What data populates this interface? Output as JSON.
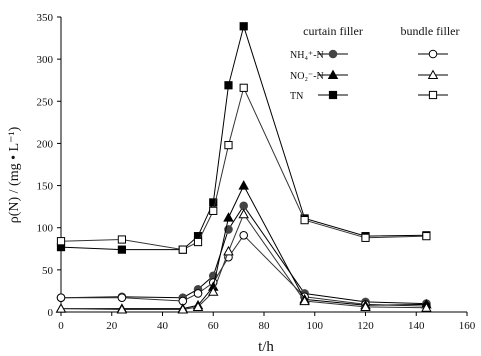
{
  "chart_data": {
    "type": "line",
    "title": "",
    "xlabel": "t/h",
    "ylabel": "ρ(N) / (mg • L⁻¹)",
    "xlim": [
      0,
      160
    ],
    "ylim": [
      0,
      350
    ],
    "xticks": [
      "0",
      "20",
      "40",
      "60",
      "80",
      "100",
      "120",
      "140",
      "160"
    ],
    "yticks": [
      "0",
      "50",
      "100",
      "150",
      "200",
      "250",
      "300",
      "350"
    ],
    "grid": false,
    "legend": {
      "placement": "top-right",
      "group_headers": [
        "curtain filler",
        "bundle filler"
      ],
      "rows": [
        "NH₄⁺-N",
        "NO₂⁻-N",
        "TN"
      ]
    },
    "series": [
      {
        "group": "curtain filler",
        "variable": "NH₄⁺-N",
        "marker": "circle",
        "filled": true,
        "x": [
          0,
          24,
          48,
          54,
          60,
          66,
          72,
          96,
          120,
          144
        ],
        "y": [
          17,
          18,
          17,
          27,
          43,
          98,
          126,
          22,
          12,
          10
        ]
      },
      {
        "group": "bundle filler",
        "variable": "NH₄⁺-N",
        "marker": "circle",
        "filled": false,
        "x": [
          0,
          24,
          48,
          54,
          60,
          66,
          72,
          96,
          120,
          144
        ],
        "y": [
          17,
          17,
          13,
          22,
          35,
          65,
          91,
          18,
          9,
          7
        ]
      },
      {
        "group": "curtain filler",
        "variable": "NO₂⁻-N",
        "marker": "triangle",
        "filled": true,
        "x": [
          0,
          24,
          48,
          54,
          60,
          66,
          72,
          96,
          120,
          144
        ],
        "y": [
          4,
          4,
          4,
          8,
          30,
          112,
          150,
          15,
          8,
          9
        ]
      },
      {
        "group": "bundle filler",
        "variable": "NO₂⁻-N",
        "marker": "triangle",
        "filled": false,
        "x": [
          0,
          24,
          48,
          54,
          60,
          66,
          72,
          96,
          120,
          144
        ],
        "y": [
          4,
          3,
          3,
          6,
          24,
          72,
          116,
          13,
          6,
          5
        ]
      },
      {
        "group": "curtain filler",
        "variable": "TN",
        "marker": "square",
        "filled": true,
        "x": [
          0,
          24,
          48,
          54,
          60,
          66,
          72,
          96,
          120,
          144
        ],
        "y": [
          77,
          74,
          74,
          90,
          130,
          269,
          339,
          111,
          90,
          91
        ]
      },
      {
        "group": "bundle filler",
        "variable": "TN",
        "marker": "square",
        "filled": false,
        "x": [
          0,
          24,
          48,
          54,
          60,
          66,
          72,
          96,
          120,
          144
        ],
        "y": [
          84,
          86,
          74,
          83,
          120,
          198,
          266,
          109,
          88,
          90
        ]
      }
    ]
  }
}
